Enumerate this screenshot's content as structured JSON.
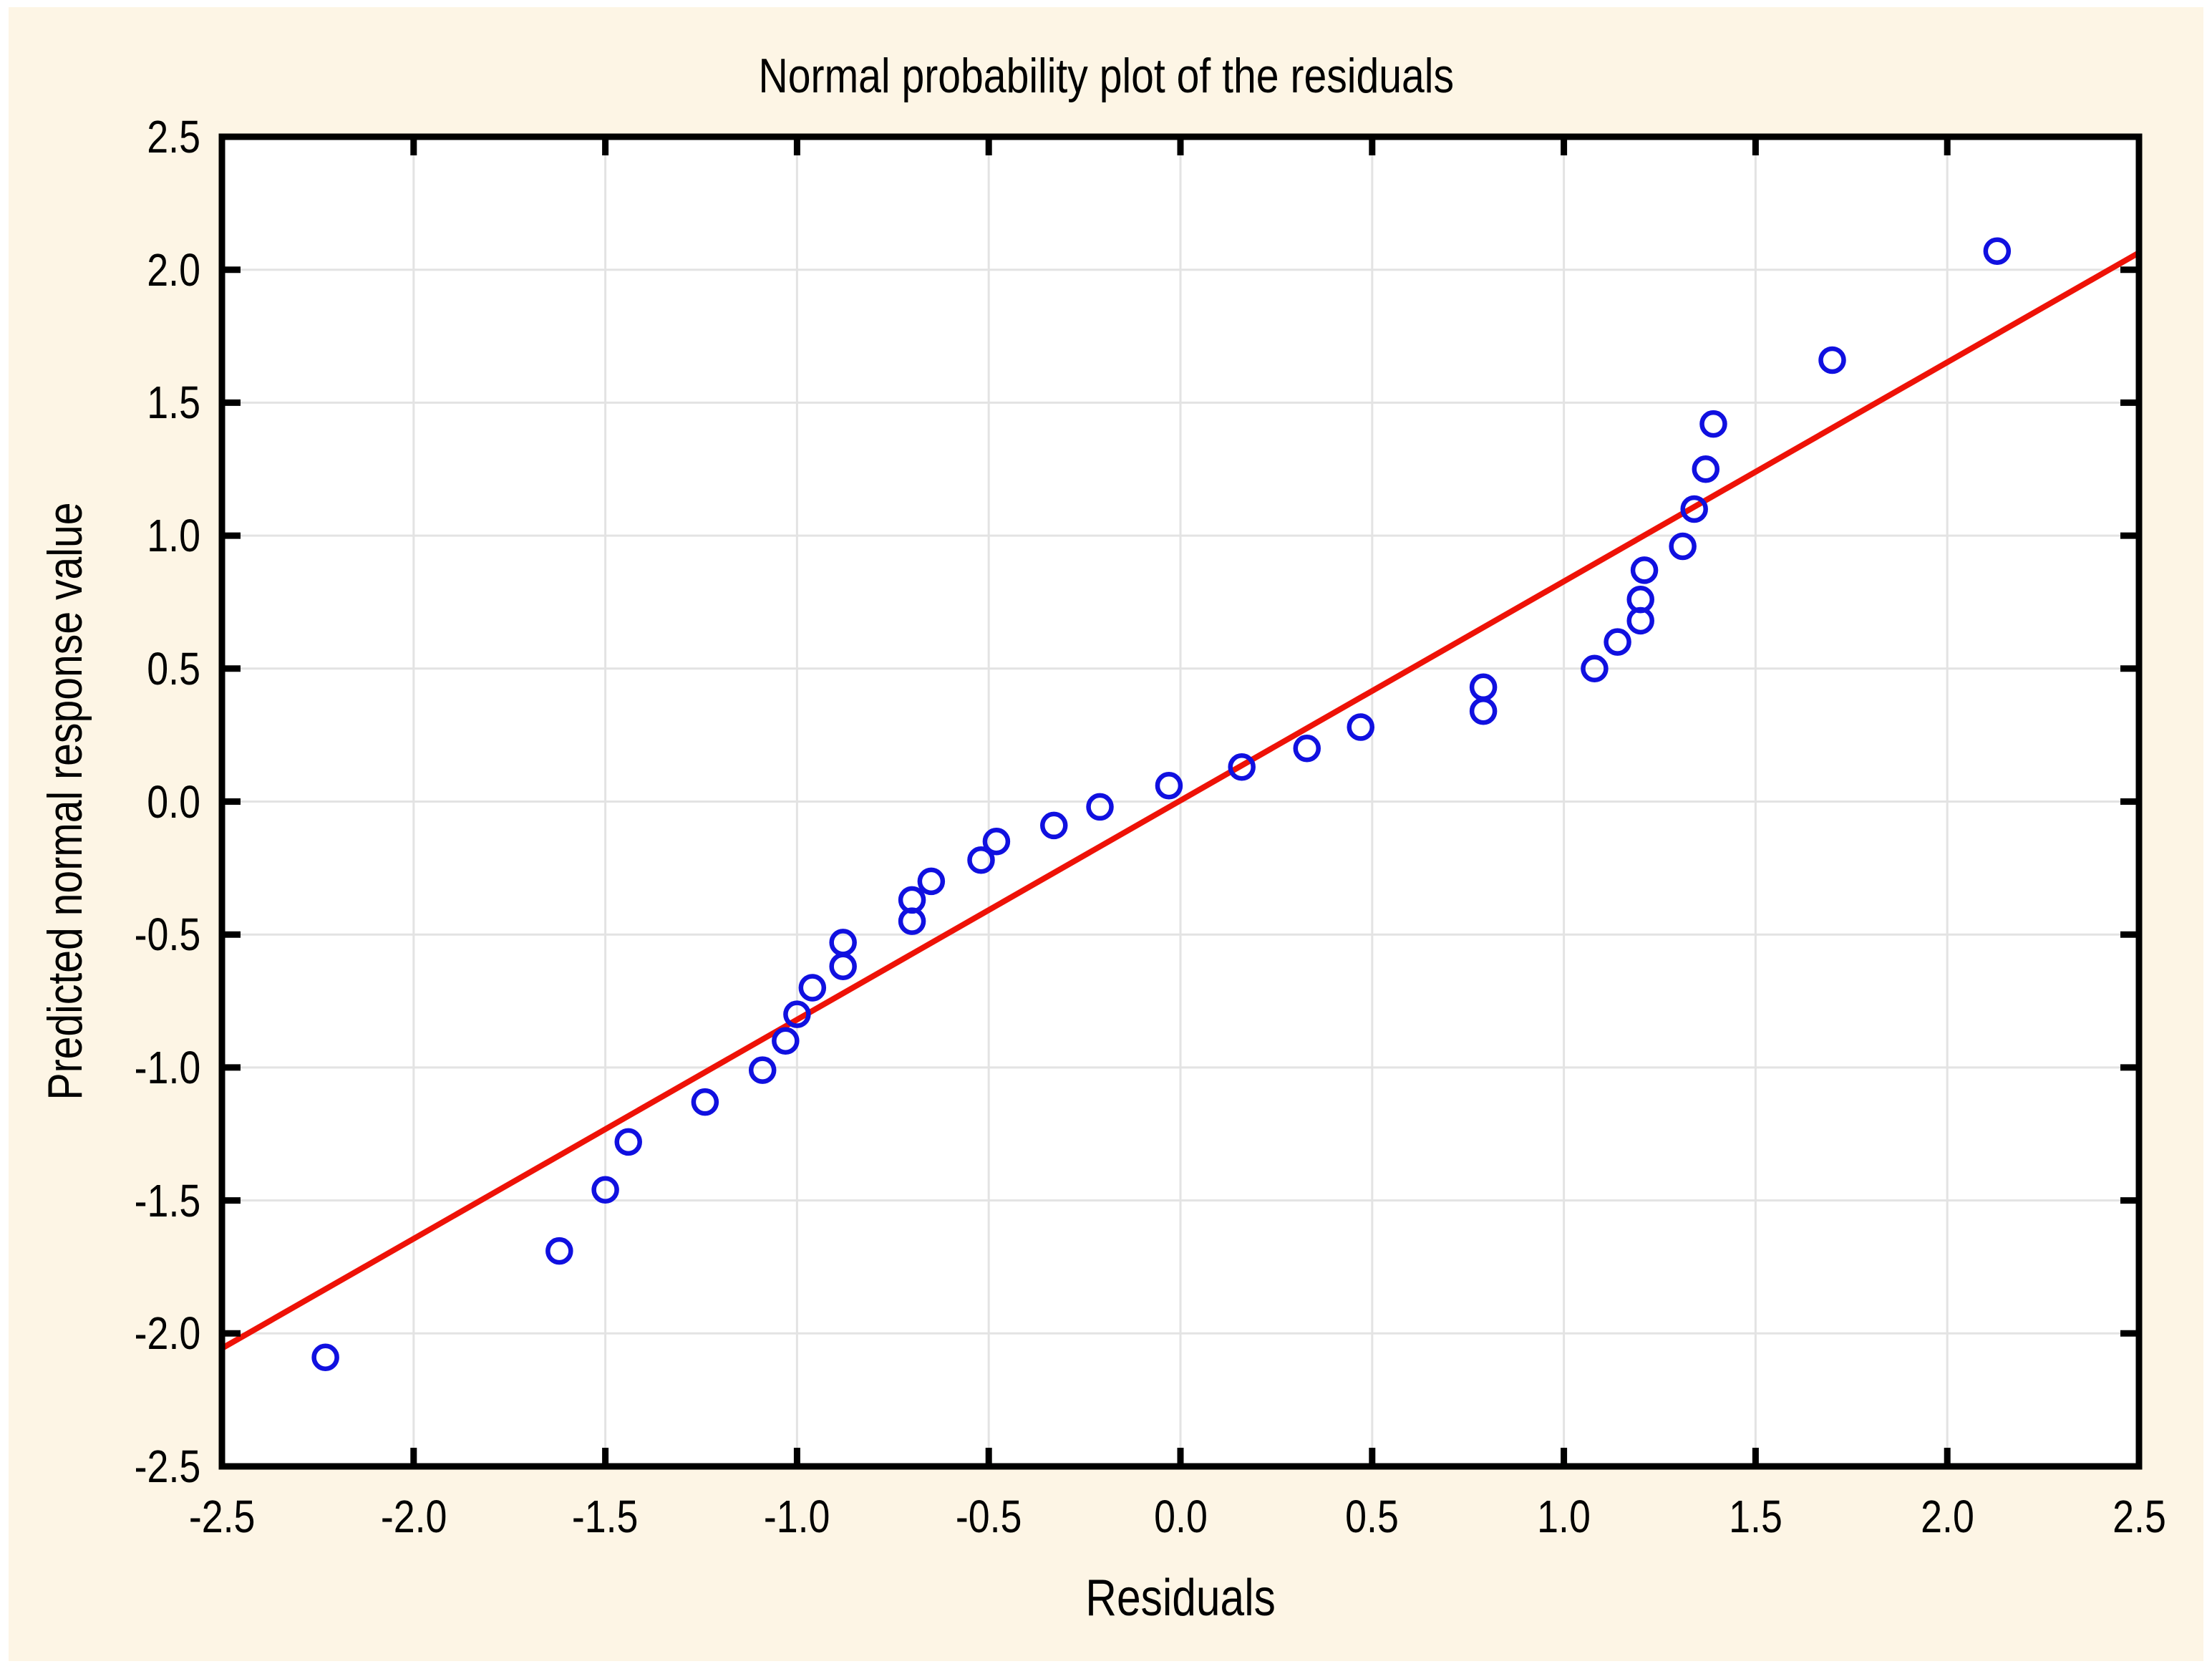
{
  "page": {
    "outer_background": "#ffffff",
    "panel_background": "#fdf5e5"
  },
  "chart_data": {
    "type": "scatter",
    "title": "Normal probability plot of the residuals",
    "xlabel": "Residuals",
    "ylabel": "Predicted normal response value",
    "xlim": [
      -2.5,
      2.5
    ],
    "ylim": [
      -2.5,
      2.5
    ],
    "grid": true,
    "legend_position": "none",
    "xticks": {
      "values": [
        -2.5,
        -2.0,
        -1.5,
        -1.0,
        -0.5,
        0.0,
        0.5,
        1.0,
        1.5,
        2.0,
        2.5
      ],
      "labels": [
        "-2.5",
        "-2.0",
        "-1.5",
        "-1.0",
        "-0.5",
        "0.0",
        "0.5",
        "1.0",
        "1.5",
        "2.0",
        "2.5"
      ]
    },
    "yticks": {
      "values": [
        -2.5,
        -2.0,
        -1.5,
        -1.0,
        -0.5,
        0.0,
        0.5,
        1.0,
        1.5,
        2.0,
        2.5
      ],
      "labels": [
        "-2.5",
        "-2.0",
        "-1.5",
        "-1.0",
        "-0.5",
        "0.0",
        "0.5",
        "1.0",
        "1.5",
        "2.0",
        "2.5"
      ]
    },
    "series": [
      {
        "name": "residuals-points",
        "type": "scatter",
        "marker": "open-circle",
        "color": "#1010e0",
        "points": [
          [
            -2.23,
            -2.09
          ],
          [
            -1.62,
            -1.69
          ],
          [
            -1.5,
            -1.46
          ],
          [
            -1.44,
            -1.28
          ],
          [
            -1.24,
            -1.13
          ],
          [
            -1.09,
            -1.01
          ],
          [
            -1.03,
            -0.9
          ],
          [
            -1.0,
            -0.8
          ],
          [
            -0.96,
            -0.7
          ],
          [
            -0.88,
            -0.62
          ],
          [
            -0.88,
            -0.53
          ],
          [
            -0.7,
            -0.45
          ],
          [
            -0.7,
            -0.37
          ],
          [
            -0.65,
            -0.3
          ],
          [
            -0.52,
            -0.22
          ],
          [
            -0.48,
            -0.15
          ],
          [
            -0.33,
            -0.09
          ],
          [
            -0.21,
            -0.02
          ],
          [
            -0.03,
            0.06
          ],
          [
            0.16,
            0.13
          ],
          [
            0.33,
            0.2
          ],
          [
            0.47,
            0.28
          ],
          [
            0.79,
            0.34
          ],
          [
            0.79,
            0.43
          ],
          [
            1.08,
            0.5
          ],
          [
            1.14,
            0.6
          ],
          [
            1.2,
            0.68
          ],
          [
            1.2,
            0.76
          ],
          [
            1.21,
            0.87
          ],
          [
            1.31,
            0.96
          ],
          [
            1.34,
            1.1
          ],
          [
            1.37,
            1.25
          ],
          [
            1.39,
            1.42
          ],
          [
            1.7,
            1.66
          ],
          [
            2.13,
            2.07
          ]
        ]
      },
      {
        "name": "normal-fit-line",
        "type": "line",
        "color": "#ee1207",
        "slope": 0.824,
        "intercept": 0.004,
        "x_range": [
          -2.5,
          2.5
        ]
      }
    ],
    "colors": {
      "plot_background": "#ffffff",
      "grid": "#e3e3e3",
      "axis": "#000000"
    }
  }
}
